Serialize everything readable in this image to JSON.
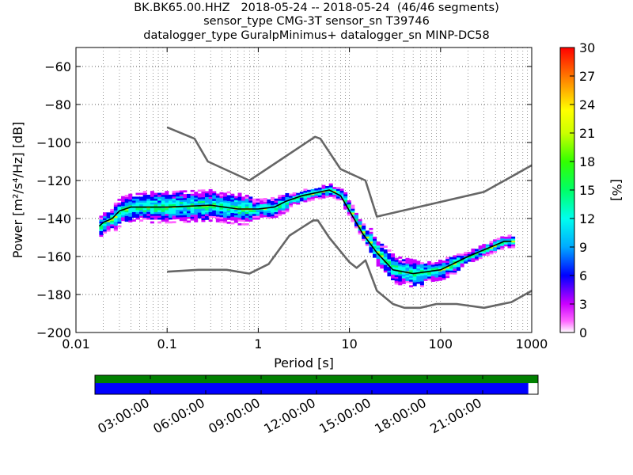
{
  "title": {
    "line1": "BK.BK65.00.HHZ   2018-05-24 -- 2018-05-24  (46/46 segments)",
    "line2": "sensor_type CMG-3T sensor_sn T39746",
    "line3": "datalogger_type GuralpMinimus+ datalogger_sn MINP-DC58"
  },
  "chart_data": {
    "type": "heatmap",
    "xlabel": "Period [s]",
    "ylabel": "Power [m²/s⁴/Hz] [dB]",
    "xscale": "log",
    "xlim": [
      0.01,
      1000
    ],
    "ylim": [
      -200,
      -50
    ],
    "x_ticks": [
      "0.01",
      "0.1",
      "1",
      "10",
      "100",
      "1000"
    ],
    "y_ticks": [
      "−60",
      "−80",
      "−100",
      "−120",
      "−140",
      "−160",
      "−180",
      "−200"
    ],
    "grid": true,
    "colorbar": {
      "label": "[%]",
      "range": [
        0,
        30
      ],
      "ticks": [
        "0",
        "3",
        "6",
        "9",
        "12",
        "15",
        "18",
        "21",
        "24",
        "27",
        "30"
      ]
    },
    "series": [
      {
        "name": "",
        "color": "#666666",
        "points": [
          [
            0.1,
            -92
          ],
          [
            0.2,
            -98
          ],
          [
            0.28,
            -110
          ],
          [
            0.8,
            -120
          ],
          [
            4.2,
            -97
          ],
          [
            4.8,
            -98
          ],
          [
            8,
            -114
          ],
          [
            15,
            -120
          ],
          [
            20,
            -139
          ],
          [
            300,
            -126
          ],
          [
            1000,
            -112
          ]
        ]
      },
      {
        "name": "",
        "color": "#666666",
        "points": [
          [
            0.1,
            -168
          ],
          [
            0.22,
            -167
          ],
          [
            0.45,
            -167
          ],
          [
            0.8,
            -169
          ],
          [
            1.3,
            -164
          ],
          [
            2.2,
            -149
          ],
          [
            4,
            -141
          ],
          [
            4.5,
            -141
          ],
          [
            6,
            -150
          ],
          [
            10,
            -163
          ],
          [
            12,
            -166
          ],
          [
            15,
            -162
          ],
          [
            20,
            -178
          ],
          [
            30,
            -185
          ],
          [
            40,
            -187
          ],
          [
            60,
            -187
          ],
          [
            90,
            -185
          ],
          [
            150,
            -185
          ],
          [
            300,
            -187
          ],
          [
            600,
            -184
          ],
          [
            1000,
            -178
          ]
        ]
      },
      {
        "name": "",
        "color": "#000000",
        "points": [
          [
            0.018,
            -144
          ],
          [
            0.02,
            -142
          ],
          [
            0.025,
            -140
          ],
          [
            0.03,
            -136
          ],
          [
            0.04,
            -134
          ],
          [
            0.1,
            -134
          ],
          [
            0.3,
            -133
          ],
          [
            0.6,
            -135
          ],
          [
            1,
            -135
          ],
          [
            1.5,
            -134
          ],
          [
            2,
            -131
          ],
          [
            3,
            -128
          ],
          [
            6,
            -125
          ],
          [
            8,
            -128
          ],
          [
            10,
            -136
          ],
          [
            14,
            -148
          ],
          [
            20,
            -158
          ],
          [
            30,
            -167
          ],
          [
            50,
            -169
          ],
          [
            100,
            -167
          ],
          [
            200,
            -160
          ],
          [
            500,
            -152
          ],
          [
            600,
            -152
          ]
        ]
      }
    ],
    "timeline": {
      "ticks": [
        "03:00:00",
        "06:00:00",
        "09:00:00",
        "12:00:00",
        "15:00:00",
        "18:00:00",
        "21:00:00"
      ],
      "coverage_color": "#008000",
      "data_color": "#0000ff",
      "data_fraction": 0.978
    }
  }
}
